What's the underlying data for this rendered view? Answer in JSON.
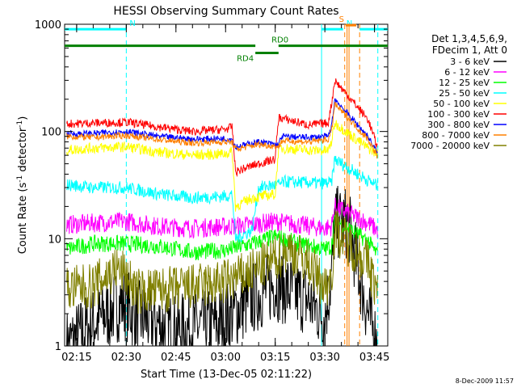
{
  "chart_data": {
    "type": "line",
    "title": "HESSI Observing Summary Count Rates",
    "xlabel": "Start Time (13-Dec-05 02:11:22)",
    "ylabel_parts": [
      "Count Rate (s",
      "-1",
      " detector",
      "-1",
      ")"
    ],
    "yscale": "log",
    "ylim": [
      1,
      1000
    ],
    "xlim": [
      "02:11:22",
      "03:49:00"
    ],
    "y_ticks": [
      "1",
      "10",
      "100",
      "1000"
    ],
    "x_ticks": [
      "02:15",
      "02:30",
      "02:45",
      "03:00",
      "03:15",
      "03:30",
      "03:45"
    ],
    "legend_header": [
      "Det 1,3,4,5,6,9,",
      "FDecim 1, Att 0"
    ],
    "series": [
      {
        "name": "3 - 6 keV",
        "color": "#000000",
        "points": [
          [
            "02:12",
            1
          ],
          [
            "02:20",
            1.6
          ],
          [
            "02:29",
            2.6
          ],
          [
            "02:33",
            1.9
          ],
          [
            "02:45",
            1.4
          ],
          [
            "02:58",
            1.6
          ],
          [
            "03:06",
            2.5
          ],
          [
            "03:15",
            3.8
          ],
          [
            "03:24",
            2.8
          ],
          [
            "03:30",
            1.9
          ],
          [
            "03:32",
            4.5
          ],
          [
            "03:33",
            14
          ],
          [
            "03:37",
            14
          ],
          [
            "03:43",
            2
          ],
          [
            "03:46",
            1
          ]
        ]
      },
      {
        "name": "6 - 12 keV",
        "color": "#ff00ff",
        "points": [
          [
            "02:12",
            13.5
          ],
          [
            "02:20",
            14
          ],
          [
            "02:30",
            14.5
          ],
          [
            "02:40",
            13
          ],
          [
            "02:50",
            12.5
          ],
          [
            "03:00",
            13
          ],
          [
            "03:08",
            13.5
          ],
          [
            "03:15",
            14.5
          ],
          [
            "03:22",
            13.5
          ],
          [
            "03:30",
            12.5
          ],
          [
            "03:32",
            13
          ],
          [
            "03:33",
            20
          ],
          [
            "03:43",
            14
          ],
          [
            "03:46",
            12
          ]
        ]
      },
      {
        "name": "12 - 25 keV",
        "color": "#00ff00",
        "points": [
          [
            "02:12",
            8
          ],
          [
            "02:20",
            9
          ],
          [
            "02:30",
            9
          ],
          [
            "02:40",
            8.5
          ],
          [
            "02:50",
            7.5
          ],
          [
            "03:00",
            7.8
          ],
          [
            "03:08",
            9
          ],
          [
            "03:15",
            10.5
          ],
          [
            "03:22",
            9
          ],
          [
            "03:30",
            8
          ],
          [
            "03:32",
            8.5
          ],
          [
            "03:33",
            15
          ],
          [
            "03:43",
            9.5
          ],
          [
            "03:46",
            7
          ]
        ]
      },
      {
        "name": "25 - 50 keV",
        "color": "#00ffff",
        "points": [
          [
            "02:12",
            32
          ],
          [
            "02:20",
            30
          ],
          [
            "02:30",
            30
          ],
          [
            "02:40",
            26
          ],
          [
            "02:50",
            24
          ],
          [
            "03:00",
            25
          ],
          [
            "03:02",
            26
          ],
          [
            "03:03",
            10
          ],
          [
            "03:08",
            12
          ],
          [
            "03:10",
            30
          ],
          [
            "03:16",
            32
          ],
          [
            "03:18",
            34
          ],
          [
            "03:28",
            33
          ],
          [
            "03:32",
            33
          ],
          [
            "03:33",
            55
          ],
          [
            "03:43",
            35
          ],
          [
            "03:46",
            31
          ]
        ]
      },
      {
        "name": "50 - 100 keV",
        "color": "#ffff00",
        "points": [
          [
            "02:12",
            67
          ],
          [
            "02:20",
            70
          ],
          [
            "02:30",
            72
          ],
          [
            "02:40",
            64
          ],
          [
            "02:50",
            60
          ],
          [
            "03:00",
            62
          ],
          [
            "03:02",
            65
          ],
          [
            "03:03",
            20
          ],
          [
            "03:08",
            24
          ],
          [
            "03:15",
            26
          ],
          [
            "03:16",
            70
          ],
          [
            "03:25",
            67
          ],
          [
            "03:31",
            66
          ],
          [
            "03:32",
            80
          ],
          [
            "03:33",
            120
          ],
          [
            "03:43",
            70
          ],
          [
            "03:46",
            62
          ]
        ]
      },
      {
        "name": "100 - 300 keV",
        "color": "#ff0000",
        "points": [
          [
            "02:12",
            118
          ],
          [
            "02:20",
            120
          ],
          [
            "02:30",
            122
          ],
          [
            "02:40",
            110
          ],
          [
            "02:50",
            100
          ],
          [
            "03:00",
            105
          ],
          [
            "03:02",
            110
          ],
          [
            "03:03",
            42
          ],
          [
            "03:08",
            48
          ],
          [
            "03:15",
            55
          ],
          [
            "03:16",
            135
          ],
          [
            "03:25",
            115
          ],
          [
            "03:31",
            120
          ],
          [
            "03:32",
            180
          ],
          [
            "03:33",
            300
          ],
          [
            "03:43",
            130
          ],
          [
            "03:46",
            70
          ]
        ]
      },
      {
        "name": "300 - 800 keV",
        "color": "#0000ff",
        "points": [
          [
            "02:12",
            95
          ],
          [
            "02:20",
            96
          ],
          [
            "02:30",
            100
          ],
          [
            "02:40",
            90
          ],
          [
            "02:50",
            85
          ],
          [
            "03:00",
            86
          ],
          [
            "03:02",
            85
          ],
          [
            "03:03",
            72
          ],
          [
            "03:10",
            80
          ],
          [
            "03:16",
            75
          ],
          [
            "03:17",
            90
          ],
          [
            "03:25",
            88
          ],
          [
            "03:31",
            90
          ],
          [
            "03:32",
            110
          ],
          [
            "03:33",
            200
          ],
          [
            "03:43",
            90
          ],
          [
            "03:46",
            62
          ]
        ]
      },
      {
        "name": "800 - 7000 keV",
        "color": "#ff8000",
        "points": [
          [
            "02:12",
            90
          ],
          [
            "02:20",
            88
          ],
          [
            "02:30",
            92
          ],
          [
            "02:40",
            84
          ],
          [
            "02:50",
            78
          ],
          [
            "03:00",
            80
          ],
          [
            "03:02",
            79
          ],
          [
            "03:03",
            68
          ],
          [
            "03:10",
            76
          ],
          [
            "03:16",
            72
          ],
          [
            "03:17",
            82
          ],
          [
            "03:25",
            80
          ],
          [
            "03:31",
            84
          ],
          [
            "03:32",
            100
          ],
          [
            "03:33",
            180
          ],
          [
            "03:43",
            85
          ],
          [
            "03:46",
            58
          ]
        ]
      },
      {
        "name": "7000 - 20000 keV",
        "color": "#808000",
        "points": [
          [
            "02:12",
            3.4
          ],
          [
            "02:20",
            3.6
          ],
          [
            "02:27",
            5.3
          ],
          [
            "02:30",
            4.6
          ],
          [
            "02:33",
            3.2
          ],
          [
            "02:45",
            3.4
          ],
          [
            "02:58",
            3.8
          ],
          [
            "03:06",
            4.6
          ],
          [
            "03:15",
            6.5
          ],
          [
            "03:19",
            8
          ],
          [
            "03:25",
            6
          ],
          [
            "03:30",
            3.5
          ],
          [
            "03:32",
            4.5
          ],
          [
            "03:33",
            12
          ],
          [
            "03:43",
            6
          ],
          [
            "03:46",
            3
          ]
        ]
      }
    ],
    "vertical_lines": [
      {
        "time": "02:30",
        "color": "#00ffff",
        "dashed": true
      },
      {
        "time": "03:29",
        "color": "#00ffff",
        "dashed": false
      },
      {
        "time": "03:36",
        "color": "#ff8000",
        "dashed": true
      },
      {
        "time": "03:36.7",
        "color": "#ff8000",
        "dashed": false
      },
      {
        "time": "03:37.3",
        "color": "#ff8000",
        "dashed": false
      },
      {
        "time": "03:40.5",
        "color": "#ff8000",
        "dashed": true
      },
      {
        "time": "03:46",
        "color": "#00ffff",
        "dashed": true
      }
    ],
    "flag_bars": [
      {
        "label": "N",
        "color": "#00ffff",
        "from": "02:11:22",
        "to": "02:30",
        "level": 900
      },
      {
        "label": "N",
        "color": "#00ffff",
        "from": "03:29",
        "to": "03:35.5",
        "level": 900
      },
      {
        "label": "",
        "color": "#00ffff",
        "from": "03:40.5",
        "to": "03:49",
        "level": 900
      },
      {
        "label": "S",
        "color": "#ff8000",
        "from": "03:36.3",
        "to": "03:39.5",
        "level": 980
      },
      {
        "label": "RD0",
        "color": "#008000",
        "from": "02:11:22",
        "to": "03:09",
        "level": 630
      },
      {
        "label": "",
        "color": "#008000",
        "from": "03:16",
        "to": "03:49",
        "level": 630
      },
      {
        "label": "RD4",
        "color": "#008000",
        "from": "03:09",
        "to": "03:16",
        "level": 540
      }
    ],
    "footer": "8-Dec-2009 11:57"
  }
}
